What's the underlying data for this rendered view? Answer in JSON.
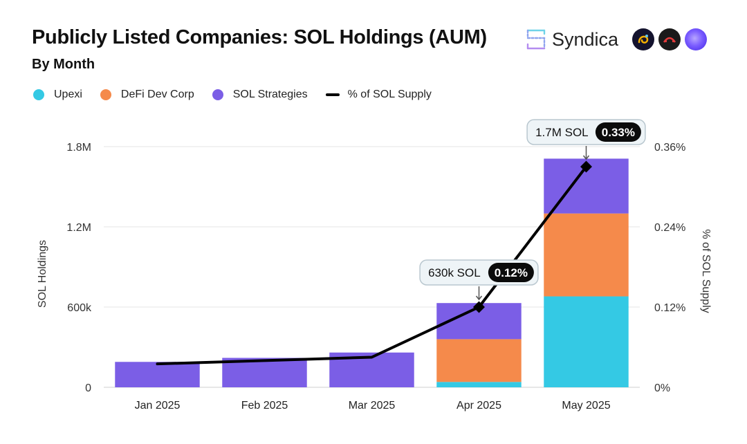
{
  "header": {
    "title": "Publicly Listed Companies: SOL Holdings (AUM)",
    "subtitle": "By Month",
    "brand_name": "Syndica"
  },
  "colors": {
    "upexi": "#34c9e4",
    "defi_dev_corp": "#f58a4b",
    "sol_strategies": "#7b5ee6",
    "line": "#000000",
    "grid": "#e6e6e6"
  },
  "icons": [
    "syndica-logo-icon",
    "partner-logo-1-icon",
    "partner-logo-2-icon",
    "partner-logo-3-icon"
  ],
  "legend": [
    {
      "label": "Upexi",
      "color": "#34c9e4",
      "kind": "dot"
    },
    {
      "label": "DeFi Dev Corp",
      "color": "#f58a4b",
      "kind": "dot"
    },
    {
      "label": "SOL Strategies",
      "color": "#7b5ee6",
      "kind": "dot"
    },
    {
      "label": "% of SOL Supply",
      "color": "#000000",
      "kind": "line"
    }
  ],
  "chart_data": {
    "type": "bar",
    "stacked": true,
    "title": "Publicly Listed Companies: SOL Holdings (AUM)",
    "subtitle": "By Month",
    "categories": [
      "Jan 2025",
      "Feb 2025",
      "Mar 2025",
      "Apr 2025",
      "May 2025"
    ],
    "series": [
      {
        "name": "Upexi",
        "color": "#34c9e4",
        "values": [
          0,
          0,
          0,
          40000,
          680000
        ]
      },
      {
        "name": "DeFi Dev Corp",
        "color": "#f58a4b",
        "values": [
          0,
          0,
          0,
          320000,
          620000
        ]
      },
      {
        "name": "SOL Strategies",
        "color": "#7b5ee6",
        "values": [
          190000,
          220000,
          260000,
          270000,
          410000
        ]
      }
    ],
    "line_series": {
      "name": "% of SOL Supply",
      "values": [
        0.035,
        0.04,
        0.045,
        0.12,
        0.33
      ],
      "markers": [
        false,
        false,
        false,
        true,
        true
      ]
    },
    "ylabel": "SOL Holdings",
    "y2label": "% of SOL Supply",
    "ylim": [
      0,
      1800000
    ],
    "y2lim": [
      0,
      0.36
    ],
    "yticks": [
      {
        "value": 0,
        "label": "0"
      },
      {
        "value": 600000,
        "label": "600k"
      },
      {
        "value": 1200000,
        "label": "1.2M"
      },
      {
        "value": 1800000,
        "label": "1.8M"
      }
    ],
    "y2ticks": [
      {
        "value": 0,
        "label": "0%"
      },
      {
        "value": 0.12,
        "label": "0.12%"
      },
      {
        "value": 0.24,
        "label": "0.24%"
      },
      {
        "value": 0.36,
        "label": "0.36%"
      }
    ],
    "annotations": [
      {
        "category": "Apr 2025",
        "text": "630k SOL",
        "badge": "0.12%"
      },
      {
        "category": "May 2025",
        "text": "1.7M SOL",
        "badge": "0.33%"
      }
    ],
    "grid": true
  }
}
